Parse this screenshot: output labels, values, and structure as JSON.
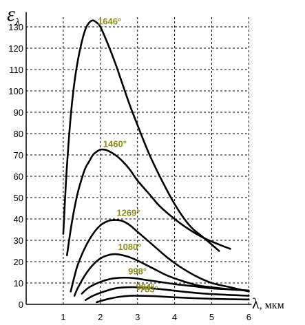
{
  "chart_data": {
    "type": "line",
    "ylabel_symbol": "ε",
    "ylabel_sub": "λ",
    "xlabel_symbol": "λ",
    "xlabel_unit": ", мкм",
    "xlim": [
      0,
      6
    ],
    "ylim": [
      0,
      135
    ],
    "xticks": [
      1,
      2,
      3,
      4,
      5,
      6
    ],
    "yticks": [
      0,
      10,
      20,
      30,
      40,
      50,
      60,
      70,
      80,
      90,
      100,
      110,
      120,
      130
    ],
    "grid": true,
    "label_color": "#8b8b1e",
    "series": [
      {
        "name": "1646°",
        "x": [
          1.0,
          1.05,
          1.1,
          1.2,
          1.3,
          1.4,
          1.5,
          1.6,
          1.7,
          1.8,
          1.9,
          2.0,
          2.2,
          2.4,
          2.6,
          2.8,
          3.0,
          3.3,
          3.6,
          4.0,
          4.4,
          4.8,
          5.2
        ],
        "y": [
          33,
          50,
          65,
          88,
          104,
          115,
          123,
          129,
          132,
          133,
          132,
          130,
          122,
          113,
          103,
          93,
          84,
          71,
          60,
          47,
          37,
          31,
          25
        ]
      },
      {
        "name": "1460°",
        "x": [
          1.1,
          1.2,
          1.3,
          1.4,
          1.5,
          1.6,
          1.7,
          1.8,
          1.9,
          2.0,
          2.1,
          2.2,
          2.4,
          2.6,
          2.8,
          3.0,
          3.3,
          3.6,
          4.0,
          4.4,
          4.8,
          5.2,
          5.5
        ],
        "y": [
          23,
          35,
          45,
          53,
          59,
          64,
          67,
          70,
          71.5,
          72.5,
          72.5,
          72,
          70,
          67,
          63,
          58,
          52,
          46,
          40,
          35,
          31,
          28,
          26
        ]
      },
      {
        "name": "1269°",
        "x": [
          1.2,
          1.3,
          1.4,
          1.6,
          1.8,
          2.0,
          2.2,
          2.4,
          2.6,
          2.8,
          3.0,
          3.4,
          3.8,
          4.2,
          4.6,
          5.0,
          5.5,
          6.0
        ],
        "y": [
          6,
          13,
          19,
          27,
          33,
          37,
          39,
          39.5,
          39,
          37,
          34,
          28,
          22,
          17,
          13,
          10,
          8,
          6
        ]
      },
      {
        "name": "1080°",
        "x": [
          1.3,
          1.4,
          1.6,
          1.8,
          2.0,
          2.2,
          2.4,
          2.6,
          2.8,
          3.0,
          3.4,
          3.8,
          4.2,
          4.6,
          5.0,
          5.5,
          6.0
        ],
        "y": [
          4,
          8,
          14,
          18.5,
          21.5,
          23,
          23.5,
          23,
          22,
          20.5,
          17,
          13.5,
          11,
          9,
          8,
          7,
          6.5
        ]
      },
      {
        "name": "998°",
        "x": [
          1.5,
          1.7,
          2.0,
          2.3,
          2.6,
          2.9,
          3.2,
          3.6,
          4.0,
          4.5,
          5.0,
          5.5,
          6.0
        ],
        "y": [
          5,
          8,
          10.5,
          12,
          12.5,
          12.3,
          11.5,
          10.5,
          9.5,
          8.5,
          7.5,
          7,
          6.5
        ]
      },
      {
        "name": "904°",
        "x": [
          1.6,
          1.8,
          2.1,
          2.4,
          2.7,
          3.0,
          3.4,
          3.8,
          4.2,
          4.6,
          5.0,
          5.5,
          6.0
        ],
        "y": [
          2,
          4,
          6,
          7.5,
          8,
          8,
          7.5,
          6.8,
          6,
          5.3,
          4.8,
          4.4,
          4
        ]
      },
      {
        "name": "783°",
        "x": [
          1.9,
          2.2,
          2.5,
          2.8,
          3.1,
          3.5,
          4.0,
          4.5,
          5.0,
          5.5,
          6.0
        ],
        "y": [
          1,
          2.5,
          3.5,
          4,
          4,
          3.8,
          3.3,
          2.9,
          2.6,
          2.4,
          2.3
        ]
      }
    ]
  }
}
